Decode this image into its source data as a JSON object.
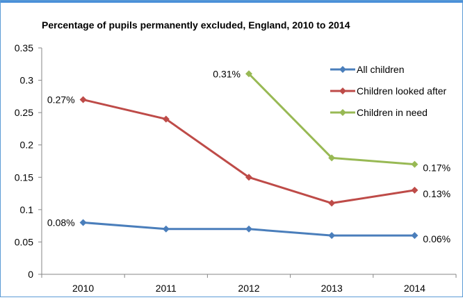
{
  "chart_data": {
    "type": "line",
    "title": "Percentage of pupils permanently excluded, England, 2010 to 2014",
    "xlabel": "",
    "ylabel": "",
    "categories": [
      "2010",
      "2011",
      "2012",
      "2013",
      "2014"
    ],
    "ylim": [
      0,
      0.35
    ],
    "yticks": [
      "0",
      "0.05",
      "0.1",
      "0.15",
      "0.2",
      "0.25",
      "0.3",
      "0.35"
    ],
    "grid": false,
    "legend_position": "right",
    "series": [
      {
        "name": "All children",
        "color": "#4a7ebb",
        "values": [
          0.08,
          0.07,
          0.07,
          0.06,
          0.06
        ],
        "labels": [
          "0.08%",
          null,
          null,
          null,
          "0.06%"
        ]
      },
      {
        "name": "Children looked after",
        "color": "#be4b48",
        "values": [
          0.27,
          0.24,
          0.15,
          0.11,
          0.13
        ],
        "labels": [
          "0.27%",
          null,
          null,
          null,
          "0.13%"
        ]
      },
      {
        "name": "Children in need",
        "color": "#98b954",
        "values": [
          null,
          null,
          0.31,
          0.18,
          0.17
        ],
        "labels": [
          null,
          null,
          "0.31%",
          null,
          "0.17%"
        ]
      }
    ]
  }
}
